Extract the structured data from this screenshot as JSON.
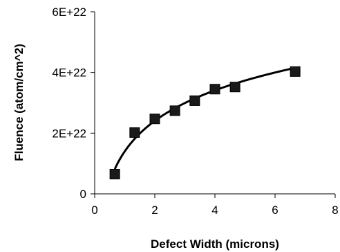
{
  "chart_data": {
    "type": "scatter",
    "title": "",
    "xlabel": "Defect Width (microns)",
    "ylabel": "Fluence (atom/cm^2)",
    "xlim": [
      0,
      8
    ],
    "ylim": [
      0,
      6e+22
    ],
    "x_ticks": [
      0,
      2,
      4,
      6,
      8
    ],
    "x_tick_labels": [
      "0",
      "2",
      "4",
      "6",
      "8"
    ],
    "y_ticks": [
      0,
      2e+22,
      4e+22,
      6e+22
    ],
    "y_tick_labels": [
      "0",
      "2E+22",
      "4E+22",
      "6E+22"
    ],
    "grid": false,
    "legend": "none",
    "series": [
      {
        "marker": "square",
        "marker_color": "#1a1a1a",
        "x": [
          0.67,
          1.33,
          2.0,
          2.67,
          3.33,
          4.0,
          4.67,
          6.67
        ],
        "y": [
          6.5e+21,
          2.02e+22,
          2.47e+22,
          2.74e+22,
          3.07e+22,
          3.45e+22,
          3.52e+22,
          4.03e+22
        ]
      }
    ],
    "trendline": {
      "type": "logarithmic",
      "color": "#000000",
      "x_range": [
        0.67,
        6.67
      ],
      "a": 1.45e+22,
      "b": 1.4e+22
    }
  }
}
